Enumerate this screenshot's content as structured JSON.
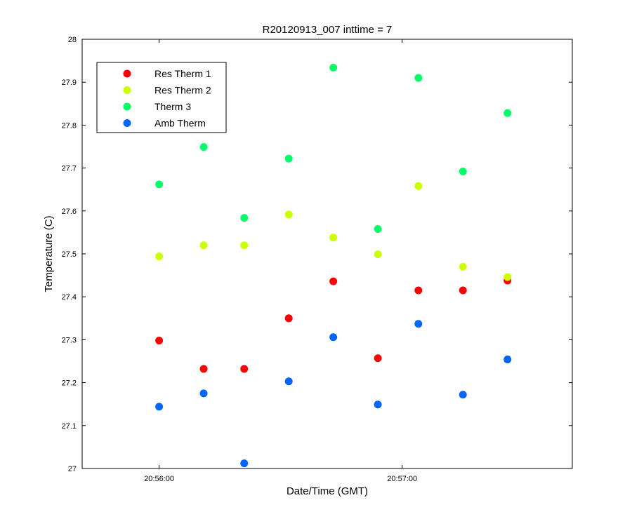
{
  "chart_data": {
    "type": "scatter",
    "title": "R20120913_007 inttime = 7",
    "xlabel": "Date/Time (GMT)",
    "ylabel": "Temperature (C)",
    "x_axis_type": "time",
    "xlim": [
      "20:55:41",
      "20:57:42"
    ],
    "ylim": [
      27,
      28
    ],
    "x_ticks": [
      "20:56:00",
      "20:57:00"
    ],
    "y_ticks": [
      "27",
      "27.1",
      "27.2",
      "27.3",
      "27.4",
      "27.5",
      "27.6",
      "27.7",
      "27.8",
      "27.9",
      "28"
    ],
    "grid": false,
    "legend_position": "top-left",
    "x": [
      "20:56:00",
      "20:56:11",
      "20:56:21",
      "20:56:32",
      "20:56:43",
      "20:56:54",
      "20:57:04",
      "20:57:15",
      "20:57:26"
    ],
    "series": [
      {
        "name": "Res Therm 1",
        "color": "#ff0000",
        "values": [
          27.298,
          27.232,
          27.232,
          27.35,
          27.436,
          27.257,
          27.415,
          27.415,
          27.438
        ]
      },
      {
        "name": "Res Therm 2",
        "color": "#ccff00",
        "values": [
          27.494,
          27.52,
          27.52,
          27.592,
          27.538,
          27.499,
          27.658,
          27.47,
          27.446
        ]
      },
      {
        "name": "Therm 3",
        "color": "#00ff66",
        "values": [
          27.662,
          27.749,
          27.584,
          27.722,
          27.934,
          27.558,
          27.91,
          27.692,
          27.828
        ]
      },
      {
        "name": "Amb Therm",
        "color": "#0066ff",
        "values": [
          27.144,
          27.175,
          27.012,
          27.203,
          27.306,
          27.149,
          27.337,
          27.172,
          27.254
        ]
      }
    ]
  }
}
